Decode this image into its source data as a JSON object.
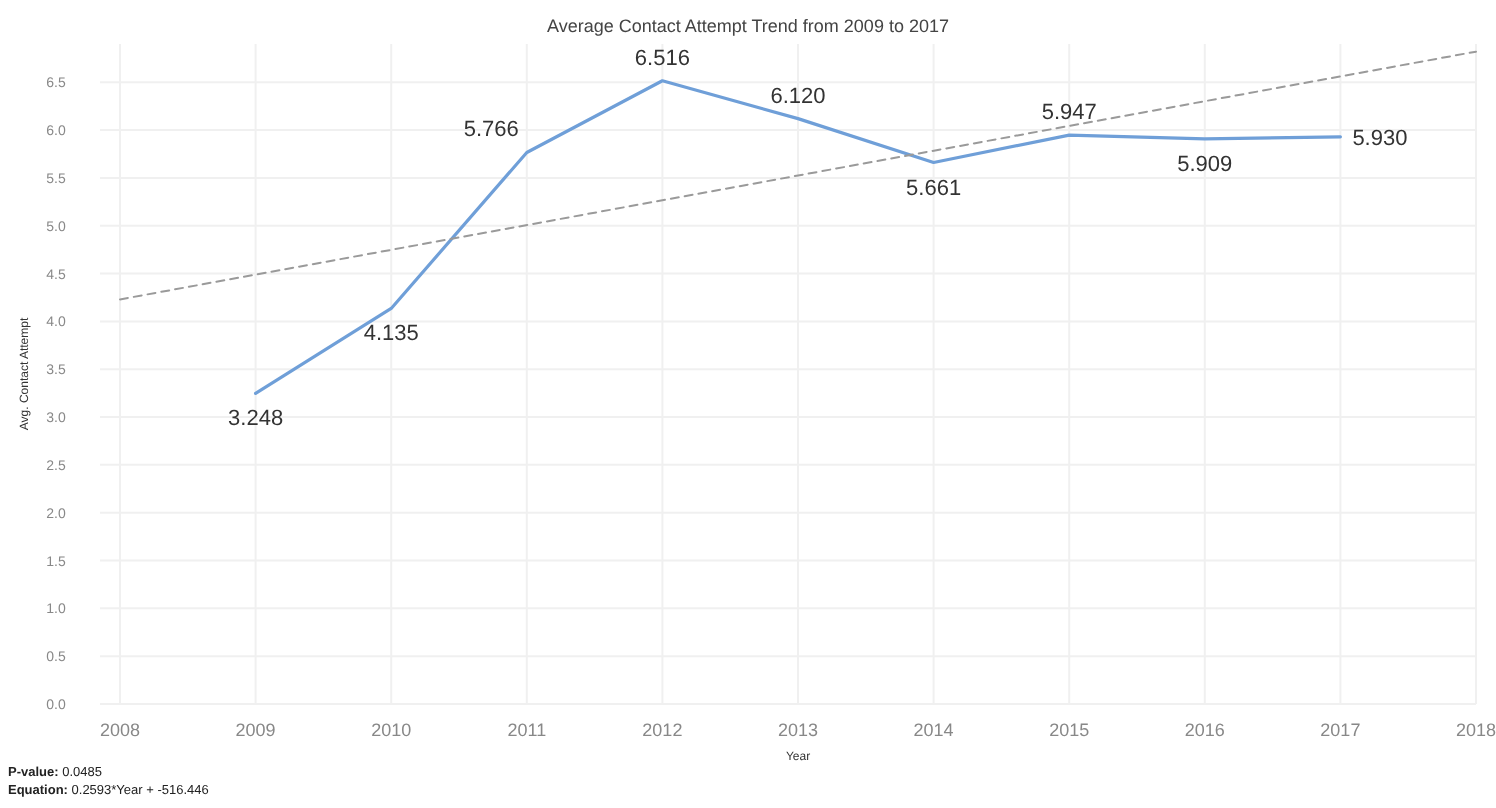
{
  "chart_data": {
    "type": "line",
    "title": "Average Contact Attempt Trend from 2009 to 2017",
    "xlabel": "Year",
    "ylabel": "Avg. Contact Attempt",
    "x": [
      2009,
      2010,
      2011,
      2012,
      2013,
      2014,
      2015,
      2016,
      2017
    ],
    "series": [
      {
        "color": "#6f9fd8",
        "values": [
          3.248,
          4.135,
          5.766,
          6.516,
          6.12,
          5.661,
          5.947,
          5.909,
          5.93
        ],
        "value_labels": [
          "3.248",
          "4.135",
          "5.766",
          "6.516",
          "6.120",
          "5.661",
          "5.947",
          "5.909",
          "5.930"
        ]
      },
      {
        "type": "line",
        "color": "#9a9a9a",
        "line_style": "dashed",
        "x": [
          2008,
          2018
        ],
        "values": [
          4.23,
          6.82
        ]
      }
    ],
    "xlim": [
      2008,
      2018
    ],
    "xticks": [
      2008,
      2009,
      2010,
      2011,
      2012,
      2013,
      2014,
      2015,
      2016,
      2017,
      2018
    ],
    "ylim": [
      0,
      6.9
    ],
    "yticks": [
      {
        "value": 0,
        "label": "0.0"
      },
      {
        "value": 0.5,
        "label": "0.5"
      },
      {
        "value": 1,
        "label": "1.0"
      },
      {
        "value": 1.5,
        "label": "1.5"
      },
      {
        "value": 2,
        "label": "2.0"
      },
      {
        "value": 2.5,
        "label": "2.5"
      },
      {
        "value": 3,
        "label": "3.0"
      },
      {
        "value": 3.5,
        "label": "3.5"
      },
      {
        "value": 4,
        "label": "4.0"
      },
      {
        "value": 4.5,
        "label": "4.5"
      },
      {
        "value": 5,
        "label": "5.0"
      },
      {
        "value": 5.5,
        "label": "5.5"
      },
      {
        "value": 6,
        "label": "6.0"
      },
      {
        "value": 6.5,
        "label": "6.5"
      }
    ],
    "grid": true,
    "line_style": "solid",
    "marker": "none",
    "annotations": [
      "P-value: 0.0485",
      "Equation: 0.2593*Year + -516.446"
    ]
  }
}
